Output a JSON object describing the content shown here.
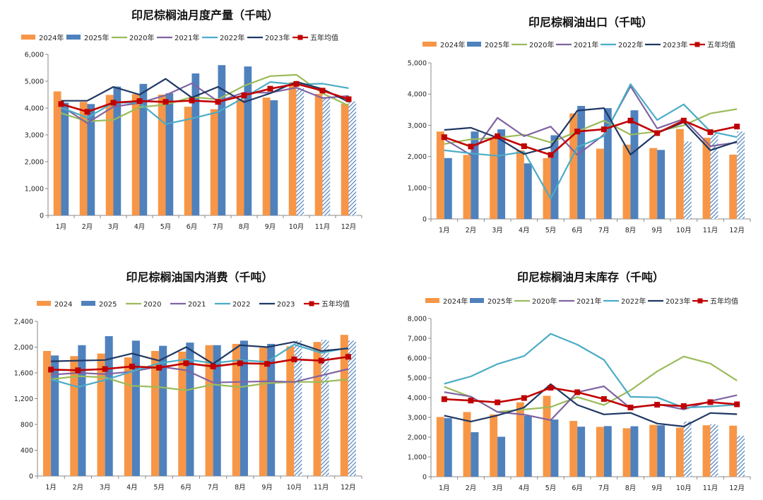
{
  "chart_data": [
    {
      "type": "bar",
      "title": "印尼棕榈油月度产量（千吨）",
      "categories": [
        "1月",
        "2月",
        "3月",
        "4月",
        "5月",
        "6月",
        "7月",
        "8月",
        "9月",
        "10月",
        "11月",
        "12月"
      ],
      "ylim": [
        0,
        6000
      ],
      "yticks": [
        0,
        1000,
        2000,
        3000,
        4000,
        5000,
        6000
      ],
      "ytick_labels": [
        "0",
        "1,000",
        "2,000",
        "3,000",
        "4,000",
        "5,000",
        "6,000"
      ],
      "grid": false,
      "legend_position": "top",
      "series": [
        {
          "name": "2024年",
          "kind": "bar",
          "color": "#F79646",
          "values": [
            4620,
            4230,
            4490,
            4520,
            4500,
            4050,
            3960,
            4320,
            4390,
            4960,
            4530,
            4160
          ]
        },
        {
          "name": "2025年",
          "kind": "bar",
          "color": "#4F81BD",
          "values": [
            4200,
            4150,
            4800,
            4900,
            4550,
            5290,
            5600,
            5550,
            4290,
            4750,
            4400,
            4250
          ],
          "hatched_from_index": 9
        },
        {
          "name": "2020年",
          "kind": "line",
          "color": "#9BBB59",
          "values": [
            3810,
            3500,
            3560,
            4030,
            4130,
            4410,
            4320,
            4830,
            5190,
            5240,
            4550,
            4090
          ]
        },
        {
          "name": "2021年",
          "kind": "line",
          "color": "#8064A2",
          "values": [
            4080,
            3440,
            4050,
            4190,
            4480,
            4920,
            4250,
            4580,
            4570,
            4760,
            4370,
            4450
          ]
        },
        {
          "name": "2022年",
          "kind": "line",
          "color": "#4BACC6",
          "values": [
            4020,
            3640,
            4200,
            4200,
            3400,
            3610,
            3850,
            4390,
            4970,
            4880,
            4910,
            4740
          ]
        },
        {
          "name": "2023年",
          "kind": "line",
          "color": "#1F3864",
          "values": [
            4270,
            4270,
            4790,
            4500,
            5090,
            4390,
            4790,
            4220,
            4550,
            4980,
            4710,
            4230
          ]
        },
        {
          "name": "五年均值",
          "kind": "line-marker",
          "color": "#C00000",
          "values": [
            4150,
            3860,
            4200,
            4260,
            4230,
            4280,
            4230,
            4470,
            4720,
            4900,
            4650,
            4330
          ]
        }
      ]
    },
    {
      "type": "bar",
      "title": "印尼棕榈油出口（千吨）",
      "categories": [
        "1月",
        "2月",
        "3月",
        "4月",
        "5月",
        "6月",
        "7月",
        "8月",
        "9月",
        "10月",
        "11月",
        "12月"
      ],
      "ylim": [
        0,
        5000
      ],
      "yticks": [
        0,
        1000,
        2000,
        3000,
        4000,
        5000
      ],
      "ytick_labels": [
        "0",
        "1,000",
        "2,000",
        "3,000",
        "4,000",
        "5,000"
      ],
      "grid": false,
      "legend_position": "top",
      "series": [
        {
          "name": "2024年",
          "kind": "bar",
          "color": "#F79646",
          "values": [
            2800,
            2050,
            2600,
            2200,
            1950,
            3380,
            2250,
            2380,
            2270,
            2880,
            2600,
            2060
          ]
        },
        {
          "name": "2025年",
          "kind": "bar",
          "color": "#4F81BD",
          "values": [
            1950,
            2800,
            2870,
            1780,
            2680,
            3620,
            3550,
            3480,
            2210,
            2480,
            2750,
            2800
          ],
          "hatched_from_index": 9
        },
        {
          "name": "2020年",
          "kind": "line",
          "color": "#9BBB59",
          "values": [
            2400,
            2550,
            2600,
            2700,
            2450,
            2800,
            3150,
            2700,
            2800,
            3000,
            3380,
            3520
          ]
        },
        {
          "name": "2021年",
          "kind": "line",
          "color": "#8064A2",
          "values": [
            2560,
            2050,
            3240,
            2650,
            2960,
            2050,
            2700,
            4250,
            2900,
            3200,
            2330,
            2450
          ]
        },
        {
          "name": "2022年",
          "kind": "line",
          "color": "#4BACC6",
          "values": [
            2200,
            2100,
            2020,
            2150,
            650,
            2300,
            2650,
            4320,
            3170,
            3670,
            2800,
            2620
          ]
        },
        {
          "name": "2023年",
          "kind": "line",
          "color": "#1F3864",
          "values": [
            2850,
            2920,
            2600,
            2080,
            2300,
            3470,
            3550,
            2060,
            2750,
            3100,
            2200,
            2480
          ]
        },
        {
          "name": "五年均值",
          "kind": "line-marker",
          "color": "#C00000",
          "values": [
            2620,
            2320,
            2650,
            2330,
            2050,
            2800,
            2870,
            3150,
            2750,
            3150,
            2780,
            2960
          ]
        }
      ]
    },
    {
      "type": "bar",
      "title": "印尼棕榈油国内消费（千吨）",
      "categories": [
        "1月",
        "2月",
        "3月",
        "4月",
        "5月",
        "6月",
        "7月",
        "8月",
        "9月",
        "10月",
        "11月",
        "12月"
      ],
      "ylim": [
        0,
        2400
      ],
      "yticks": [
        0,
        400,
        800,
        1200,
        1600,
        2000,
        2400
      ],
      "ytick_labels": [
        "0",
        "400",
        "800",
        "1,200",
        "1,600",
        "2,000",
        "2,400"
      ],
      "grid": false,
      "legend_position": "top",
      "series": [
        {
          "name": "2024",
          "kind": "bar",
          "color": "#F79646",
          "values": [
            1940,
            1860,
            1900,
            1840,
            1940,
            1930,
            2030,
            2050,
            1990,
            2010,
            2080,
            2190
          ]
        },
        {
          "name": "2025",
          "kind": "bar",
          "color": "#4F81BD",
          "values": [
            1870,
            2030,
            2170,
            2100,
            2020,
            2070,
            2030,
            2100,
            2050,
            2100,
            2110,
            2100
          ],
          "hatched_from_index": 9
        },
        {
          "name": "2020",
          "kind": "line",
          "color": "#9BBB59",
          "values": [
            1500,
            1550,
            1530,
            1400,
            1380,
            1330,
            1420,
            1380,
            1440,
            1460,
            1460,
            1500
          ]
        },
        {
          "name": "2021",
          "kind": "line",
          "color": "#8064A2",
          "values": [
            1570,
            1600,
            1580,
            1620,
            1700,
            1640,
            1450,
            1460,
            1470,
            1460,
            1560,
            1660
          ]
        },
        {
          "name": "2022",
          "kind": "line",
          "color": "#4BACC6",
          "values": [
            1500,
            1380,
            1490,
            1620,
            1750,
            1810,
            1750,
            1800,
            1770,
            2040,
            1910,
            1990
          ]
        },
        {
          "name": "2023",
          "kind": "line",
          "color": "#1F3864",
          "values": [
            1780,
            1790,
            1800,
            1900,
            1790,
            2000,
            1740,
            2030,
            2000,
            2080,
            1940,
            1980
          ]
        },
        {
          "name": "五年均值",
          "kind": "line-marker",
          "color": "#C00000",
          "values": [
            1650,
            1640,
            1660,
            1700,
            1680,
            1750,
            1700,
            1750,
            1740,
            1810,
            1790,
            1850
          ]
        }
      ]
    },
    {
      "type": "bar",
      "title": "印尼棕榈油月末库存（千吨）",
      "categories": [
        "1月",
        "2月",
        "3月",
        "4月",
        "5月",
        "6月",
        "7月",
        "8月",
        "9月",
        "10月",
        "11月",
        "12月"
      ],
      "ylim": [
        0,
        8000
      ],
      "yticks": [
        0,
        1000,
        2000,
        3000,
        4000,
        5000,
        6000,
        7000,
        8000
      ],
      "ytick_labels": [
        "0",
        "1,000",
        "2,000",
        "3,000",
        "4,000",
        "5,000",
        "6,000",
        "7,000",
        "8,000"
      ],
      "grid": false,
      "legend_position": "top",
      "series": [
        {
          "name": "2024年",
          "kind": "bar",
          "color": "#F79646",
          "values": [
            3020,
            3270,
            3150,
            3760,
            4090,
            2820,
            2520,
            2450,
            2620,
            2480,
            2600,
            2580
          ]
        },
        {
          "name": "2025年",
          "kind": "bar",
          "color": "#4F81BD",
          "values": [
            2960,
            2250,
            2020,
            3080,
            2890,
            2530,
            2560,
            2550,
            2600,
            2790,
            2650,
            2070
          ],
          "hatched_from_index": 9
        },
        {
          "name": "2020年",
          "kind": "line",
          "color": "#9BBB59",
          "values": [
            4550,
            4030,
            3280,
            3400,
            3520,
            4030,
            3620,
            4370,
            5330,
            6080,
            5720,
            4860
          ]
        },
        {
          "name": "2021年",
          "kind": "line",
          "color": "#8064A2",
          "values": [
            4280,
            4050,
            3270,
            3140,
            2860,
            4270,
            4570,
            3460,
            3670,
            3400,
            3820,
            4120
          ]
        },
        {
          "name": "2022年",
          "kind": "line",
          "color": "#4BACC6",
          "values": [
            4700,
            5070,
            5700,
            6100,
            7230,
            6680,
            5910,
            4040,
            4010,
            3490,
            3550,
            3640
          ]
        },
        {
          "name": "2023年",
          "kind": "line",
          "color": "#1F3864",
          "values": [
            3090,
            2790,
            3100,
            3500,
            4680,
            3630,
            3150,
            3230,
            2690,
            2540,
            3220,
            3160
          ]
        },
        {
          "name": "五年均值",
          "kind": "line-marker",
          "color": "#C00000",
          "values": [
            3920,
            3850,
            3760,
            3980,
            4500,
            4270,
            3930,
            3500,
            3640,
            3570,
            3770,
            3660
          ]
        }
      ]
    }
  ]
}
